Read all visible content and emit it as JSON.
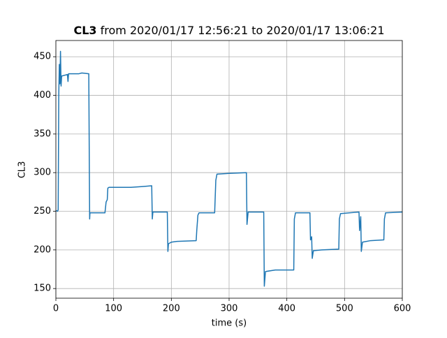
{
  "chart_data": {
    "type": "line",
    "title": {
      "bold": "CL3",
      "text": "from 2020/01/17 12:56:21 to 2020/01/17 13:06:21"
    },
    "xlabel": "time (s)",
    "ylabel": "CL3",
    "x": [
      0,
      3,
      4,
      5,
      6,
      7,
      8,
      9,
      10,
      20,
      21,
      22,
      40,
      45,
      57,
      58,
      58.5,
      59,
      85,
      87,
      89,
      90,
      92,
      130,
      150,
      166,
      167,
      168,
      193,
      194,
      195,
      200,
      210,
      243,
      244,
      246,
      248,
      275,
      277,
      279,
      300,
      330,
      331,
      333,
      360,
      361,
      363,
      380,
      400,
      412,
      413,
      415,
      440,
      441,
      443,
      444,
      446,
      460,
      490,
      491,
      493,
      525,
      526,
      528,
      529,
      531,
      545,
      568,
      569,
      571,
      600
    ],
    "series": [
      {
        "name": "CL3",
        "color": "#1f77b4",
        "values": [
          251,
          250,
          252,
          400,
          440,
          415,
          457,
          412,
          425,
          427,
          418,
          428,
          428,
          429,
          428,
          300,
          240,
          248,
          248,
          262,
          265,
          280,
          281,
          281,
          282,
          283,
          240,
          249,
          249,
          198,
          208,
          210,
          211,
          212,
          225,
          245,
          248,
          248,
          290,
          298,
          299,
          300,
          233,
          249,
          249,
          153,
          172,
          174,
          174,
          174,
          240,
          248,
          248,
          213,
          217,
          189,
          199,
          200,
          201,
          240,
          247,
          249,
          225,
          243,
          198,
          210,
          212,
          213,
          240,
          248,
          249
        ]
      }
    ],
    "xlim": [
      0,
      600
    ],
    "ylim": [
      137.5,
      471
    ],
    "xticks": [
      0,
      100,
      200,
      300,
      400,
      500,
      600
    ],
    "yticks": [
      150,
      200,
      250,
      300,
      350,
      400,
      450
    ],
    "grid": true
  }
}
